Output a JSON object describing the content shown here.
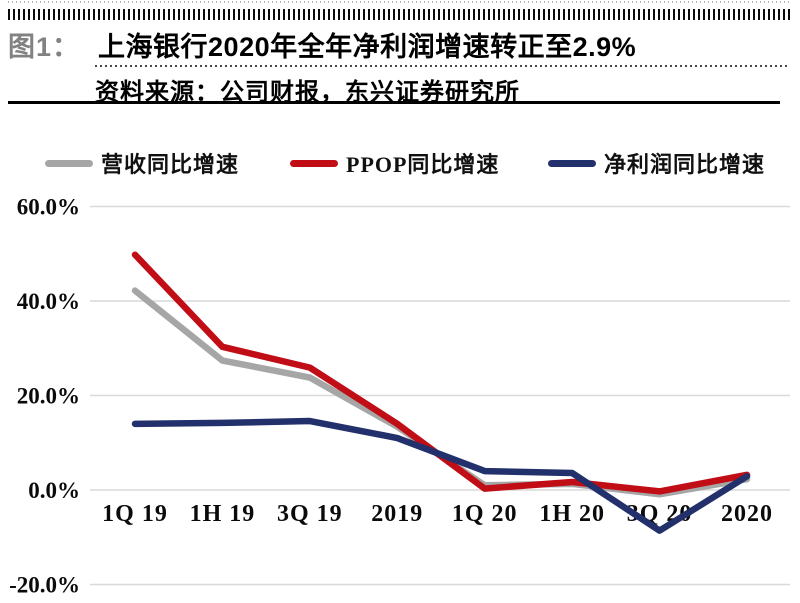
{
  "page": {
    "figure_label": "图1：",
    "title": "上海银行2020年全年净利润增速转正至2.9%",
    "source": "资料来源：公司财报，东兴证券研究所"
  },
  "legend": {
    "items": [
      {
        "label": "营收同比增速",
        "color": "#a6a6a6"
      },
      {
        "label": "PPOP同比增速",
        "color": "#c00d16"
      },
      {
        "label": "净利润同比增速",
        "color": "#22306b"
      }
    ]
  },
  "chart_data": {
    "type": "line",
    "title": "上海银行2020年全年净利润增速转正至2.9%",
    "categories": [
      "1Q 19",
      "1H 19",
      "3Q 19",
      "2019",
      "1Q 20",
      "1H 20",
      "3Q 20",
      "2020"
    ],
    "series": [
      {
        "name": "营收同比增速",
        "color": "#a6a6a6",
        "values": [
          42.2,
          27.4,
          23.8,
          13.4,
          1.0,
          1.3,
          -0.9,
          2.3
        ]
      },
      {
        "name": "PPOP同比增速",
        "color": "#c00d16",
        "values": [
          49.8,
          30.3,
          25.9,
          14.0,
          0.3,
          1.7,
          -0.3,
          3.2
        ]
      },
      {
        "name": "净利润同比增速",
        "color": "#22306b",
        "values": [
          14.0,
          14.2,
          14.6,
          11.0,
          4.0,
          3.6,
          -8.6,
          2.9
        ]
      }
    ],
    "y_ticks": [
      {
        "label": "60.0%",
        "value": 60
      },
      {
        "label": "40.0%",
        "value": 40
      },
      {
        "label": "20.0%",
        "value": 20
      },
      {
        "label": "0.0%",
        "value": 0
      },
      {
        "label": "-20.0%",
        "value": -20
      }
    ],
    "ylim": [
      -20,
      60
    ],
    "xlabel": "",
    "ylabel": "",
    "grid": "horizontal",
    "legend_position": "top",
    "unit": "percent_yoy"
  }
}
